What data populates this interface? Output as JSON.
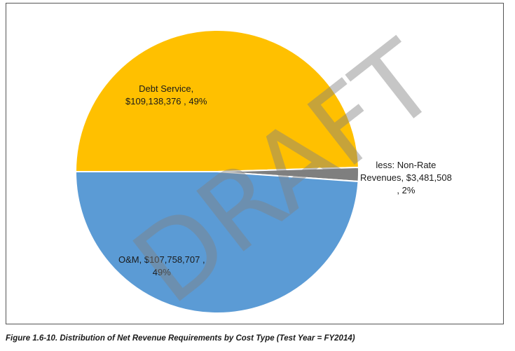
{
  "chart_data": {
    "type": "pie",
    "slices": [
      {
        "label": "Debt Service",
        "value": 109138376,
        "value_text": "$109,138,376",
        "percent": 49,
        "color": "#FFC000"
      },
      {
        "label": "less: Non-Rate Revenues",
        "value": 3481508,
        "value_text": "$3,481,508",
        "percent": 2,
        "color": "#7F7F7F"
      },
      {
        "label": "O&M",
        "value": 107758707,
        "value_text": "$107,758,707",
        "percent": 49,
        "color": "#5B9BD5"
      }
    ],
    "labels": {
      "debt_line1": "Debt Service,",
      "debt_line2": "$109,138,376 , 49%",
      "nonrate_line1": "less: Non-Rate",
      "nonrate_line2": "Revenues, $3,481,508",
      "nonrate_line3": ", 2%",
      "om_line1": "O&M, $107,758,707 ,",
      "om_line2": "49%"
    }
  },
  "watermark": "DRAFT",
  "caption": "Figure 1.6-10. Distribution of Net Revenue Requirements by Cost Type (Test Year = FY2014)"
}
